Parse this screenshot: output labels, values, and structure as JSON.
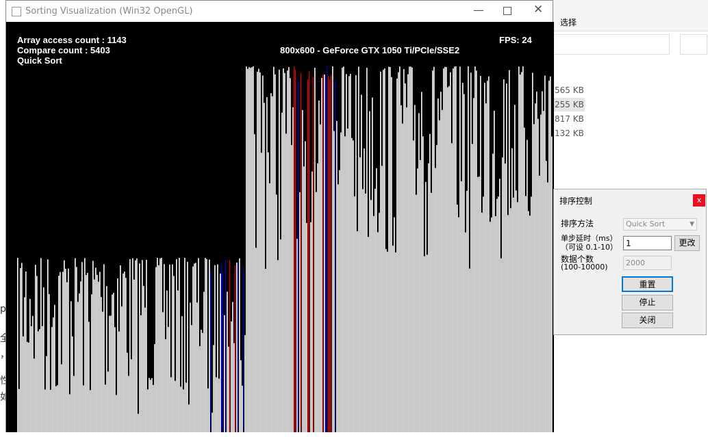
{
  "window": {
    "title": "Sorting Visualization (Win32 OpenGL)"
  },
  "overlay": {
    "access": "Array access count : 1143",
    "compare": "Compare count : 5403",
    "algorithm": "Quick Sort",
    "fps": "FPS: 24",
    "renderer": "800x600 - GeForce GTX 1050 Ti/PCIe/SSE2"
  },
  "explorer": {
    "tab": "选择",
    "sizes": [
      "565 KB",
      "255 KB",
      "817 KB",
      "132 KB"
    ],
    "fragments": [
      "p",
      "全",
      "，",
      "性",
      "如"
    ]
  },
  "dialog": {
    "title": "排序控制",
    "close": "x",
    "method_label": "排序方法",
    "method_value": "Quick Sort",
    "delay_label": "单步延时（ms）",
    "delay_hint": "（可设 0.1-10）",
    "delay_value": "1",
    "change": "更改",
    "count_label": "数据个数",
    "count_hint": "(100-10000)",
    "count_value": "2000",
    "reset": "重置",
    "stop": "停止",
    "close_btn": "关闭"
  }
}
